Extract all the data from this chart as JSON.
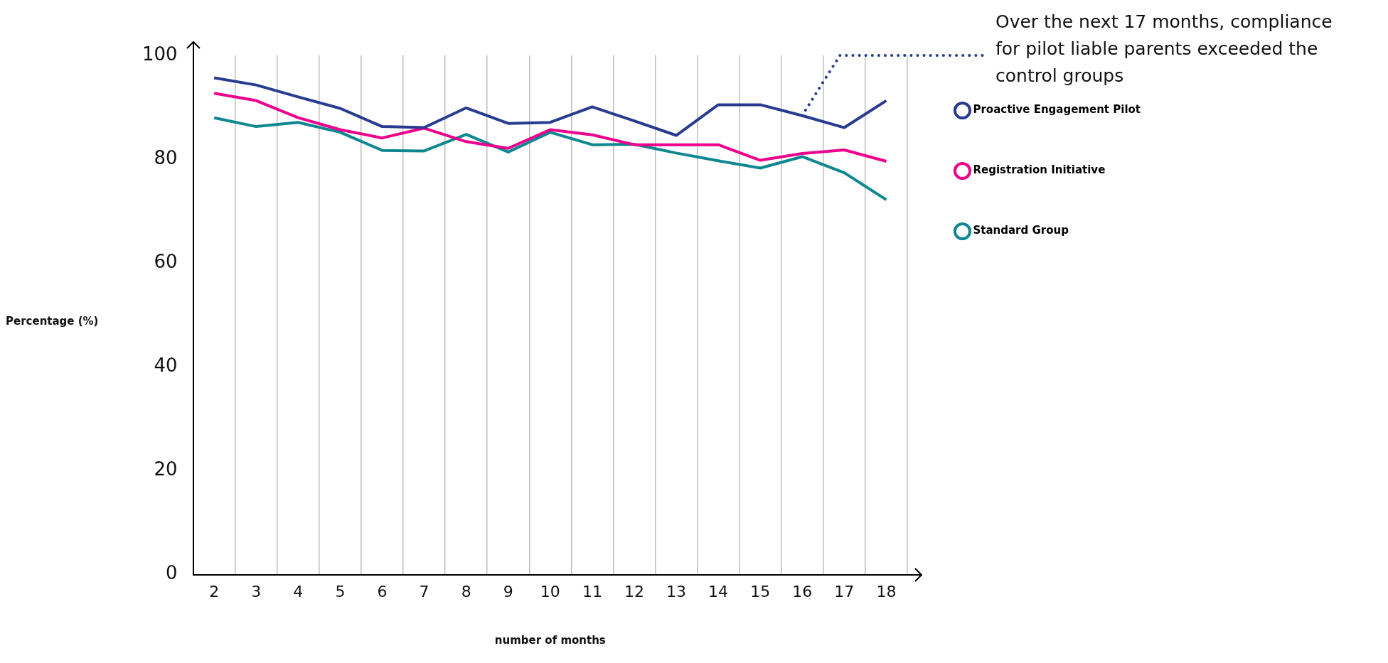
{
  "chart_data": {
    "type": "line",
    "xlabel": "number of months",
    "ylabel": "Percentage (%)",
    "categories": [
      "2",
      "3",
      "4",
      "5",
      "6",
      "7",
      "8",
      "9",
      "10",
      "11",
      "12",
      "13",
      "14",
      "15",
      "16",
      "17",
      "18"
    ],
    "series": [
      {
        "name": "Proactive Engagement Pilot",
        "color": "#283c8f",
        "values": [
          95.7,
          94.3,
          92,
          89.8,
          86.3,
          86.1,
          89.9,
          86.9,
          87.1,
          90.1,
          87.4,
          84.6,
          90.5,
          90.5,
          88.4,
          86.1,
          91.3
        ]
      },
      {
        "name": "Registration Initiative",
        "color": "#ec008c",
        "values": [
          92.7,
          91.3,
          88,
          85.7,
          84.1,
          86,
          83.4,
          82.1,
          85.7,
          84.7,
          82.8,
          82.8,
          82.8,
          79.8,
          81.1,
          81.8,
          79.6
        ]
      },
      {
        "name": "Standard Group",
        "color": "#0e8790",
        "values": [
          88,
          86.3,
          87.1,
          85.2,
          81.7,
          81.6,
          84.8,
          81.4,
          85.2,
          82.8,
          82.9,
          81.2,
          79.7,
          78.3,
          80.5,
          77.4,
          72.2
        ]
      }
    ],
    "ylim": [
      0,
      100
    ],
    "yticks": [
      0,
      20,
      40,
      60,
      80,
      100
    ],
    "grid": "x",
    "legend": "right",
    "marker": "none",
    "line_style": "solid",
    "annotations": [
      {
        "text": "Over the next 17 months, compliance for pilot liable parents exceeded the control groups",
        "x": "16",
        "y": 88.4
      }
    ]
  }
}
